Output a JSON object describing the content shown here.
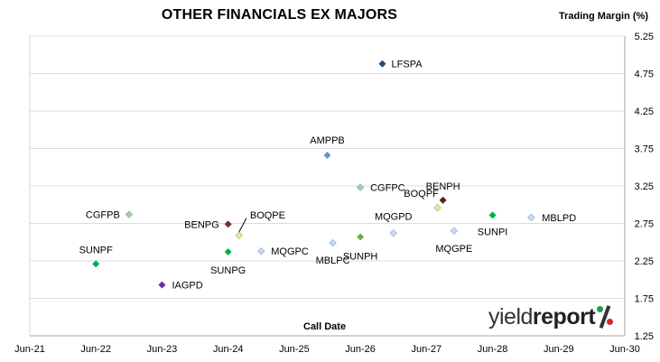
{
  "chart_data": {
    "type": "scatter",
    "title": "OTHER FINANCIALS EX MAJORS",
    "xlabel": "Call Date",
    "ylabel": "Trading Margin (%)",
    "x_ticks": [
      "Jun-21",
      "Jun-22",
      "Jun-23",
      "Jun-24",
      "Jun-25",
      "Jun-26",
      "Jun-27",
      "Jun-28",
      "Jun-29",
      "Jun-30"
    ],
    "xlim": [
      "Jun-21",
      "Jun-30"
    ],
    "ylim": [
      1.25,
      5.25
    ],
    "y_ticks": [
      "1.25",
      "1.75",
      "2.25",
      "2.75",
      "3.25",
      "3.75",
      "4.25",
      "4.75",
      "5.25"
    ],
    "y_axis_position": "right",
    "grid": "horizontal",
    "points": [
      {
        "label": "LFSPA",
        "x": "Oct-26",
        "y": 4.88,
        "color": "#1f4e79"
      },
      {
        "label": "AMPPB",
        "x": "Dec-25",
        "y": 3.66,
        "color": "#5b9bd5"
      },
      {
        "label": "CGFPC",
        "x": "Jun-26",
        "y": 3.23,
        "color": "#a9d18e"
      },
      {
        "label": "BENPH",
        "x": "Sep-27",
        "y": 3.06,
        "color": "#5a1e1e"
      },
      {
        "label": "BOQPF",
        "x": "Aug-27",
        "y": 2.96,
        "color": "#ffe66d"
      },
      {
        "label": "CGFPB",
        "x": "Dec-22",
        "y": 2.87,
        "color": "#a9d18e"
      },
      {
        "label": "SUNPI",
        "x": "Jun-28",
        "y": 2.86,
        "color": "#00b050"
      },
      {
        "label": "MBLPD",
        "x": "Jan-29",
        "y": 2.83,
        "color": "#c9daf8"
      },
      {
        "label": "BENPG",
        "x": "Jun-24",
        "y": 2.74,
        "color": "#7b2c2c"
      },
      {
        "label": "MQGPE",
        "x": "Nov-27",
        "y": 2.65,
        "color": "#c9daf8"
      },
      {
        "label": "MQGPD",
        "x": "Dec-26",
        "y": 2.62,
        "color": "#c9daf8"
      },
      {
        "label": "BOQPE",
        "x": "Aug-24",
        "y": 2.59,
        "color": "#ffe66d"
      },
      {
        "label": "SUNPH",
        "x": "Jun-26",
        "y": 2.57,
        "color": "#70ad47"
      },
      {
        "label": "MBLPC",
        "x": "Jan-26",
        "y": 2.49,
        "color": "#c9daf8"
      },
      {
        "label": "SUNPG",
        "x": "Jun-24",
        "y": 2.37,
        "color": "#00b050"
      },
      {
        "label": "MQGPC",
        "x": "Dec-24",
        "y": 2.38,
        "color": "#c9daf8"
      },
      {
        "label": "SUNPF",
        "x": "Jun-22",
        "y": 2.21,
        "color": "#00b050"
      },
      {
        "label": "IAGPD",
        "x": "Jun-23",
        "y": 1.93,
        "color": "#7030a0"
      }
    ]
  },
  "logo": {
    "text_regular": "yield",
    "text_bold": "report"
  }
}
